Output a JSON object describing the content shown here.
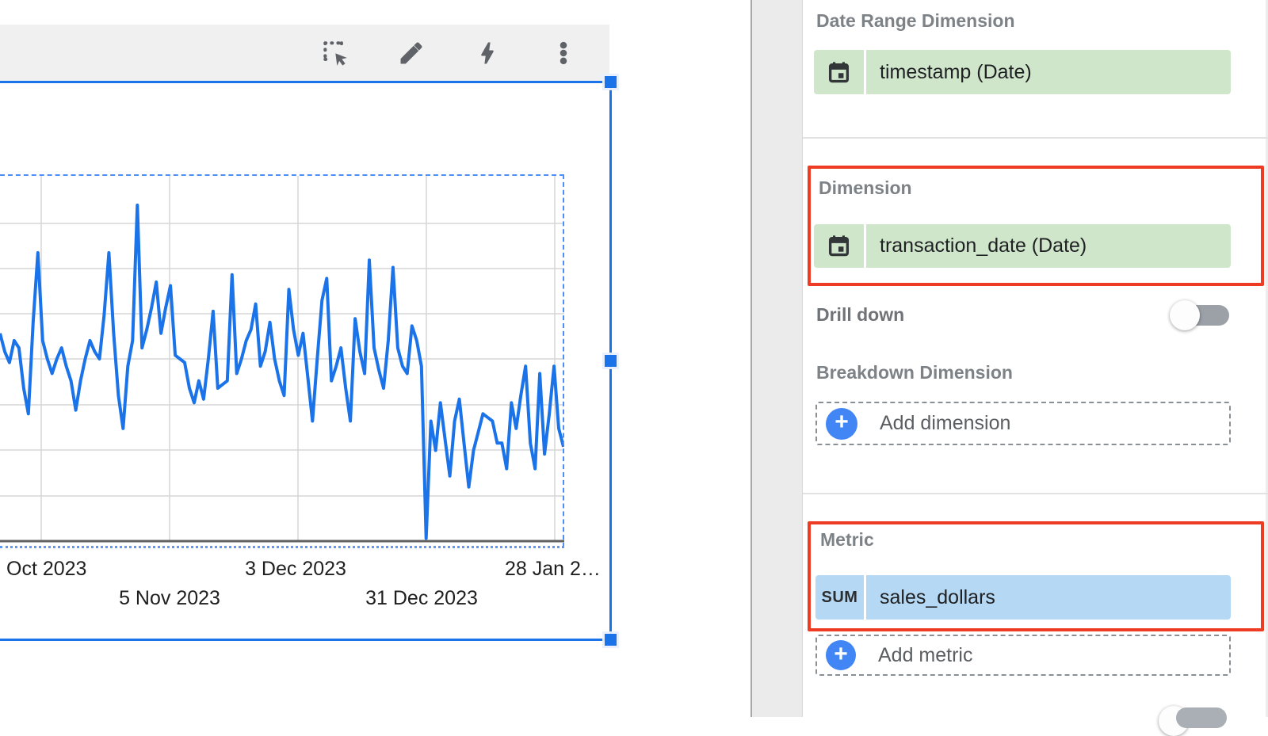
{
  "toolbar": {
    "icons": [
      {
        "name": "select-area",
        "meaning": "drag to select data"
      },
      {
        "name": "edit-pencil",
        "meaning": "edit"
      },
      {
        "name": "quick-insights-bolt",
        "meaning": "insights"
      },
      {
        "name": "more-options",
        "meaning": "more options menu"
      }
    ]
  },
  "chart_data": {
    "type": "line",
    "title": "",
    "xlabel": "",
    "ylabel": "",
    "y_axis_labels_visible": false,
    "grid": true,
    "x_ticks": [
      {
        "label": "Oct 2023"
      },
      {
        "label": "5 Nov 2023"
      },
      {
        "label": "3 Dec 2023"
      },
      {
        "label": "31 Dec 2023"
      },
      {
        "label": "28 Jan 2…"
      }
    ],
    "series": [
      {
        "name": "sales_dollars",
        "color": "#1a73e8",
        "values_pct": [
          57,
          52,
          49,
          55,
          53,
          42,
          35,
          60,
          79,
          55,
          50,
          46,
          50,
          53,
          48,
          44,
          36,
          44,
          50,
          55,
          52,
          50,
          62,
          79,
          57,
          40,
          31,
          48,
          55,
          92,
          53,
          58,
          64,
          71,
          57,
          64,
          70,
          51,
          50,
          49,
          42,
          38,
          44,
          39,
          50,
          63,
          42,
          43,
          44,
          73,
          46,
          50,
          55,
          58,
          65,
          48,
          52,
          60,
          50,
          44,
          40,
          69,
          58,
          51,
          57,
          45,
          33,
          50,
          66,
          72,
          44,
          48,
          53,
          42,
          33,
          61,
          52,
          46,
          77,
          53,
          47,
          42,
          55,
          75,
          53,
          48,
          46,
          59,
          55,
          48,
          1,
          33,
          25,
          38,
          28,
          18,
          33,
          39,
          27,
          15,
          25,
          30,
          35,
          34,
          33,
          27,
          27,
          20,
          38,
          31,
          40,
          48,
          27,
          20,
          46,
          24,
          35,
          48,
          31,
          26
        ]
      }
    ]
  },
  "panel": {
    "highlight_color": "#ee3b24",
    "date_range_dimension": {
      "label": "Date Range Dimension",
      "field": "timestamp (Date)",
      "field_type": "date"
    },
    "dimension": {
      "label": "Dimension",
      "field": "transaction_date (Date)",
      "field_type": "date",
      "highlighted": true
    },
    "drill_down": {
      "label": "Drill down",
      "enabled": false
    },
    "breakdown_dimension": {
      "label": "Breakdown Dimension",
      "add_label": "Add dimension"
    },
    "metric": {
      "label": "Metric",
      "aggregation": "SUM",
      "field": "sales_dollars",
      "highlighted": true,
      "add_label": "Add metric"
    }
  },
  "colors": {
    "accent_blue": "#1a73e8",
    "selection_dash_blue": "#4d8ef7",
    "chip_green": "#cfe6ca",
    "chip_blue": "#b5d9f4",
    "toolbar_gray": "#f0f0f0"
  }
}
